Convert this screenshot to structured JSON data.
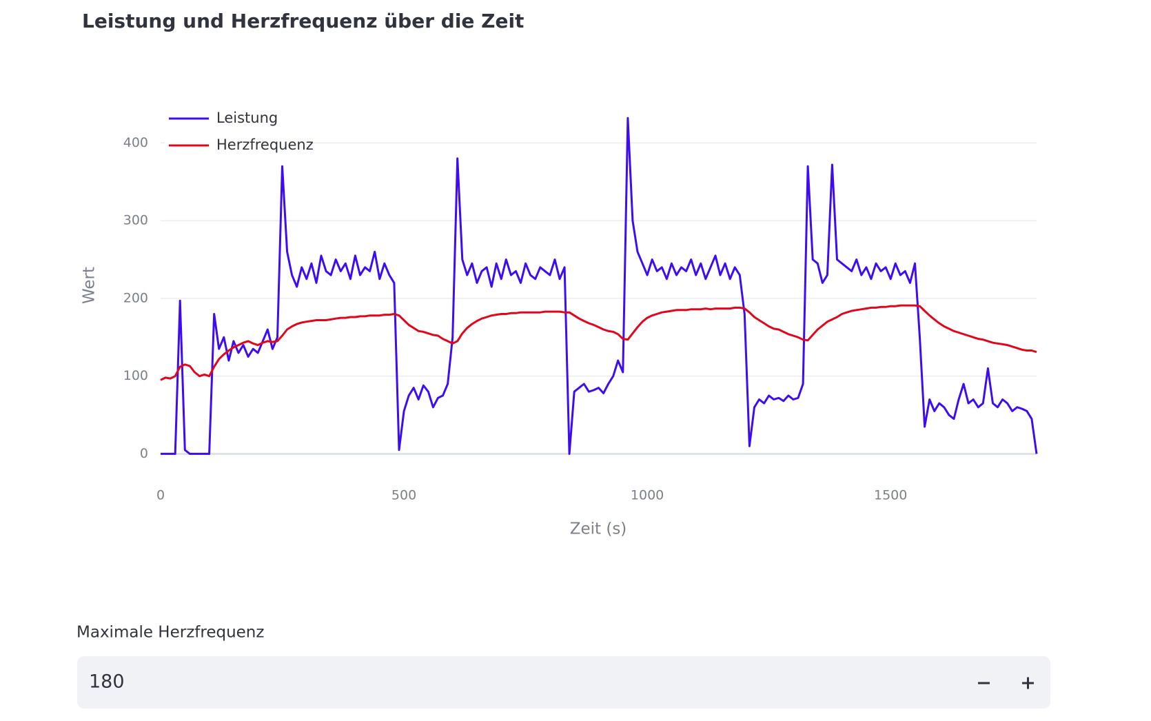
{
  "chart_data": {
    "type": "line",
    "title": "Leistung und Herzfrequenz über die Zeit",
    "x_label": "Zeit (s)",
    "y_label": "Wert",
    "xlim": [
      0,
      1800
    ],
    "ylim": [
      -20,
      450
    ],
    "xticks": [
      0,
      500,
      1000,
      1500
    ],
    "yticks": [
      0,
      100,
      200,
      300,
      400
    ],
    "grid": true,
    "legend": "top-left",
    "x": [
      0,
      10,
      20,
      30,
      40,
      50,
      60,
      70,
      80,
      90,
      100,
      110,
      120,
      130,
      140,
      150,
      160,
      170,
      180,
      190,
      200,
      210,
      220,
      230,
      240,
      250,
      260,
      270,
      280,
      290,
      300,
      310,
      320,
      330,
      340,
      350,
      360,
      370,
      380,
      390,
      400,
      410,
      420,
      430,
      440,
      450,
      460,
      470,
      480,
      490,
      500,
      510,
      520,
      530,
      540,
      550,
      560,
      570,
      580,
      590,
      600,
      610,
      620,
      630,
      640,
      650,
      660,
      670,
      680,
      690,
      700,
      710,
      720,
      730,
      740,
      750,
      760,
      770,
      780,
      790,
      800,
      810,
      820,
      830,
      840,
      850,
      860,
      870,
      880,
      890,
      900,
      910,
      920,
      930,
      940,
      950,
      960,
      970,
      980,
      990,
      1000,
      1010,
      1020,
      1030,
      1040,
      1050,
      1060,
      1070,
      1080,
      1090,
      1100,
      1110,
      1120,
      1130,
      1140,
      1150,
      1160,
      1170,
      1180,
      1190,
      1200,
      1210,
      1220,
      1230,
      1240,
      1250,
      1260,
      1270,
      1280,
      1290,
      1300,
      1310,
      1320,
      1330,
      1340,
      1350,
      1360,
      1370,
      1380,
      1390,
      1400,
      1410,
      1420,
      1430,
      1440,
      1450,
      1460,
      1470,
      1480,
      1490,
      1500,
      1510,
      1520,
      1530,
      1540,
      1550,
      1560,
      1570,
      1580,
      1590,
      1600,
      1610,
      1620,
      1630,
      1640,
      1650,
      1660,
      1670,
      1680,
      1690,
      1700,
      1710,
      1720,
      1730,
      1740,
      1750,
      1760,
      1770,
      1780,
      1790,
      1800
    ],
    "series": [
      {
        "name": "Leistung",
        "color": "#3d0cf5",
        "values": [
          0,
          0,
          0,
          0,
          197,
          5,
          0,
          0,
          0,
          0,
          0,
          180,
          135,
          150,
          120,
          145,
          130,
          140,
          125,
          135,
          130,
          145,
          160,
          135,
          150,
          370,
          260,
          230,
          215,
          240,
          225,
          245,
          220,
          255,
          235,
          230,
          250,
          235,
          245,
          225,
          255,
          230,
          240,
          235,
          260,
          225,
          245,
          230,
          220,
          5,
          55,
          75,
          85,
          70,
          88,
          80,
          60,
          72,
          75,
          90,
          150,
          380,
          250,
          230,
          245,
          220,
          235,
          240,
          215,
          245,
          225,
          250,
          230,
          235,
          220,
          245,
          230,
          225,
          240,
          235,
          230,
          250,
          225,
          240,
          0,
          80,
          85,
          90,
          80,
          82,
          85,
          78,
          90,
          100,
          120,
          105,
          432,
          300,
          260,
          245,
          230,
          250,
          235,
          240,
          225,
          245,
          230,
          240,
          235,
          250,
          230,
          245,
          225,
          240,
          255,
          230,
          245,
          225,
          240,
          230,
          180,
          10,
          60,
          70,
          65,
          75,
          70,
          72,
          68,
          75,
          70,
          72,
          90,
          370,
          250,
          245,
          220,
          230,
          372,
          250,
          245,
          240,
          235,
          250,
          230,
          240,
          225,
          245,
          235,
          240,
          225,
          245,
          230,
          235,
          220,
          245,
          150,
          35,
          70,
          55,
          65,
          60,
          50,
          45,
          70,
          90,
          65,
          70,
          60,
          65,
          110,
          65,
          60,
          70,
          65,
          55,
          60,
          58,
          55,
          45,
          0
        ]
      },
      {
        "name": "Herzfrequenz",
        "color": "#e3061b",
        "values": [
          95,
          98,
          97,
          100,
          112,
          115,
          113,
          105,
          100,
          102,
          100,
          112,
          122,
          128,
          133,
          137,
          140,
          143,
          145,
          142,
          140,
          143,
          145,
          144,
          145,
          152,
          160,
          164,
          167,
          169,
          170,
          171,
          172,
          172,
          172,
          173,
          174,
          175,
          175,
          176,
          176,
          177,
          177,
          178,
          178,
          178,
          179,
          179,
          180,
          178,
          172,
          166,
          162,
          158,
          157,
          155,
          153,
          152,
          148,
          145,
          142,
          145,
          155,
          162,
          167,
          171,
          174,
          176,
          178,
          179,
          180,
          180,
          181,
          181,
          182,
          182,
          182,
          182,
          182,
          183,
          183,
          183,
          183,
          182,
          182,
          178,
          174,
          171,
          168,
          166,
          163,
          160,
          158,
          157,
          154,
          148,
          147,
          155,
          163,
          170,
          175,
          178,
          180,
          182,
          183,
          184,
          185,
          185,
          185,
          186,
          186,
          186,
          187,
          186,
          187,
          187,
          187,
          187,
          188,
          188,
          187,
          182,
          176,
          172,
          168,
          164,
          161,
          160,
          157,
          154,
          152,
          150,
          147,
          146,
          153,
          160,
          165,
          170,
          173,
          176,
          180,
          182,
          184,
          185,
          186,
          187,
          188,
          188,
          189,
          189,
          190,
          190,
          191,
          191,
          191,
          191,
          190,
          184,
          178,
          173,
          168,
          164,
          161,
          158,
          156,
          154,
          152,
          150,
          148,
          147,
          145,
          143,
          142,
          141,
          140,
          138,
          136,
          134,
          133,
          133,
          131
        ]
      }
    ]
  },
  "input": {
    "label": "Maximale Herzfrequenz",
    "value": 180
  }
}
